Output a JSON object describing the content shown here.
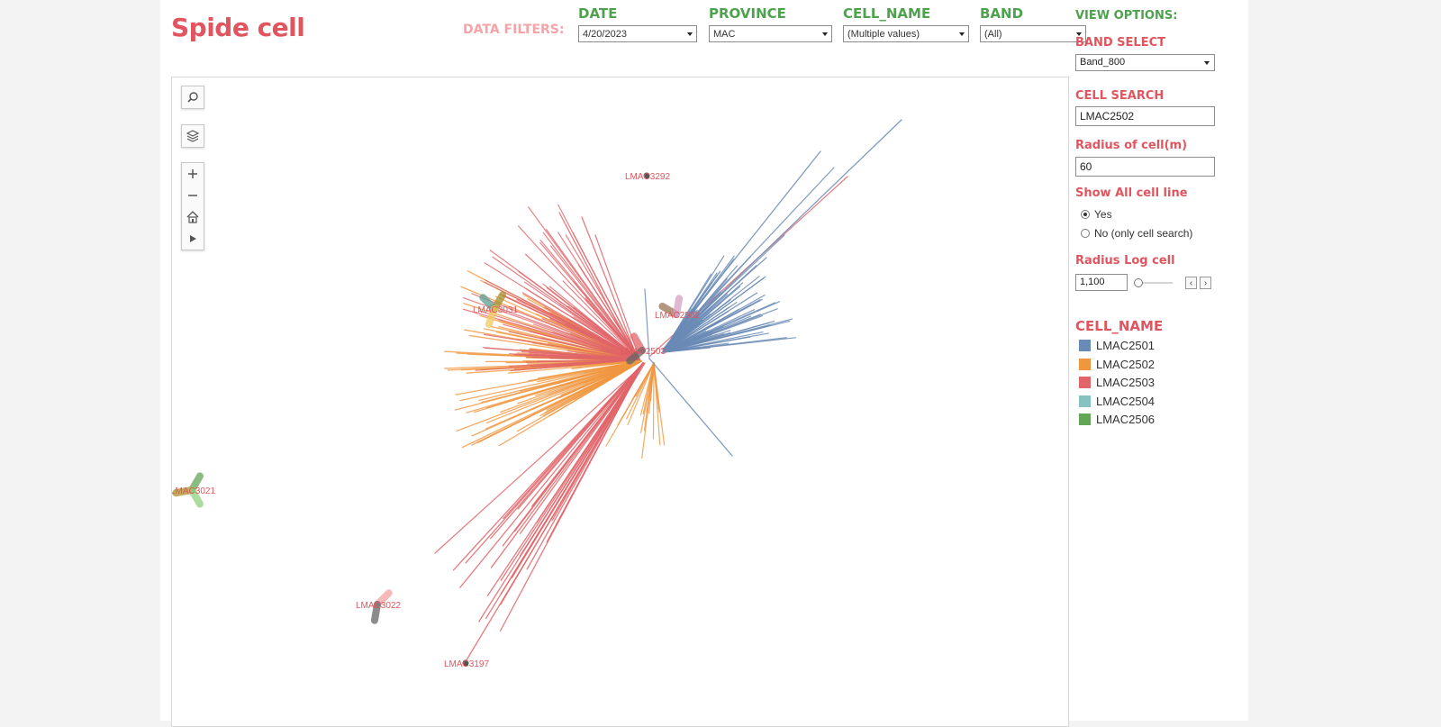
{
  "title": "Spide cell",
  "filters": {
    "label": "DATA FILTERS:",
    "date": {
      "label": "DATE",
      "value": "4/20/2023"
    },
    "province": {
      "label": "PROVINCE",
      "value": "MAC"
    },
    "cell_name": {
      "label": "CELL_NAME",
      "value": "(Multiple values)"
    },
    "band": {
      "label": "BAND",
      "value": "(All)"
    }
  },
  "view_options": {
    "header": "VIEW OPTIONS:",
    "band_select": {
      "label": "BAND SELECT",
      "value": "Band_800"
    },
    "cell_search": {
      "label": "CELL SEARCH",
      "value": "LMAC2502"
    },
    "radius_of_cell": {
      "label": "Radius of cell(m)",
      "value": "60"
    },
    "show_all_cell_line": {
      "label": "Show All cell line",
      "options": [
        "Yes",
        "No (only cell search)"
      ],
      "selected": "Yes"
    },
    "radius_log_cell": {
      "label": "Radius Log cell",
      "value": "1,100"
    }
  },
  "legend": {
    "title": "CELL_NAME",
    "items": [
      {
        "name": "LMAC2501",
        "color": "#6a8bb5"
      },
      {
        "name": "LMAC2502",
        "color": "#f0963f"
      },
      {
        "name": "LMAC2503",
        "color": "#e06469"
      },
      {
        "name": "LMAC2504",
        "color": "#86c2bf"
      },
      {
        "name": "LMAC2506",
        "color": "#63a658"
      }
    ]
  },
  "map": {
    "site_labels": [
      "LMAC3292",
      "LMAC3031",
      "LMAC2502",
      "LMAC2503",
      "LMAC3021",
      "LMAC3022",
      "LMAC3197"
    ],
    "tools": [
      "search-icon",
      "layers-icon",
      "zoom-in-icon",
      "zoom-out-icon",
      "home-icon",
      "pan-arrow-icon"
    ]
  }
}
